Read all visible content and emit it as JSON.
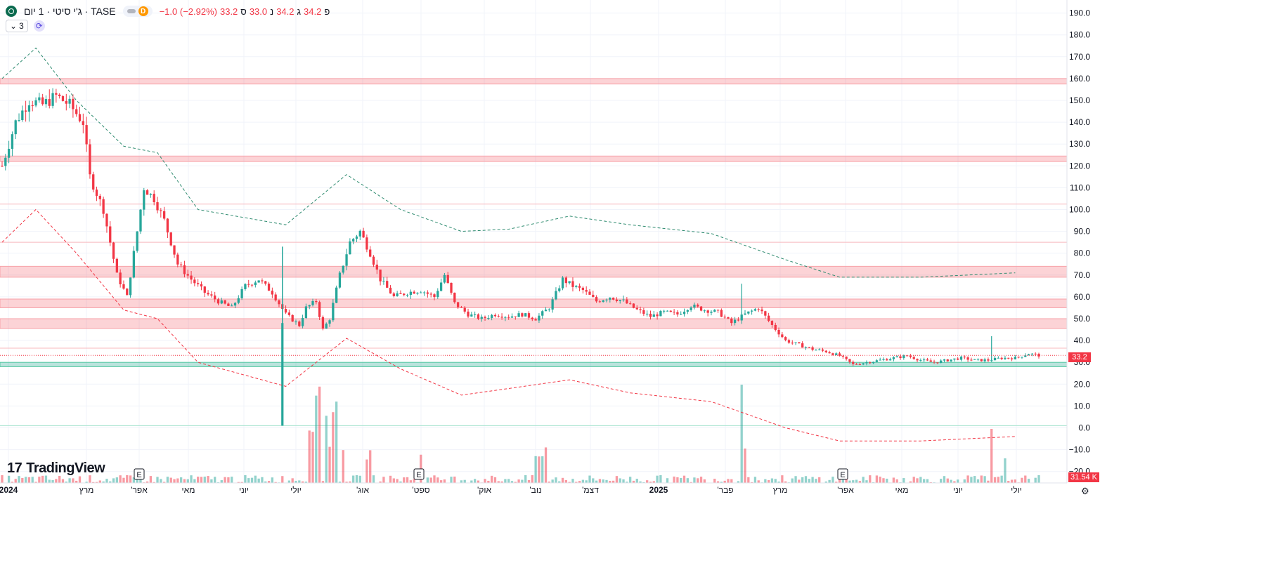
{
  "header": {
    "title": "ג'י סיטי · 1 יום · TASE",
    "data_badge": "D",
    "ohlc": [
      {
        "label": "פ",
        "value": "34.2"
      },
      {
        "label": "ג",
        "value": "34.2"
      },
      {
        "label": "נ",
        "value": "33.0"
      },
      {
        "label": "ס",
        "value": "33.2"
      }
    ],
    "change": "−1.0 (−2.92%)"
  },
  "indicators_toggle": {
    "count": "3"
  },
  "branding": {
    "logo_text": "TradingView"
  },
  "badges": {
    "last_price": "33.2",
    "volume": "31.54 K"
  },
  "colors": {
    "up": "#26a69a",
    "down": "#f23645",
    "zone": "#f23645",
    "support": "#089981",
    "upper_band": "#2e8b6f",
    "lower_band": "#f23645"
  },
  "chart_data": {
    "type": "candlestick",
    "y_axis": {
      "ticks": [
        "190.0",
        "180.0",
        "170.0",
        "160.0",
        "150.0",
        "140.0",
        "130.0",
        "120.0",
        "110.0",
        "100.0",
        "90.0",
        "80.0",
        "70.0",
        "60.0",
        "50.0",
        "40.0",
        "30.0",
        "20.0",
        "10.0",
        "0.0",
        "−10.0",
        "−20.0"
      ],
      "range": [
        -22,
        193
      ]
    },
    "x_axis": {
      "ticks": [
        "2024",
        "מרץ",
        "אפר'",
        "מאי",
        "יוני",
        "יולי",
        "אוג'",
        "ספט'",
        "אוק'",
        "נוב'",
        "דצמ'",
        "2025",
        "פבר'",
        "מרץ",
        "אפר'",
        "מאי",
        "יוני",
        "יולי"
      ]
    },
    "earnings_markers": [
      "E",
      "E",
      "E"
    ],
    "resistance_zones": [
      [
        157.5,
        160
      ],
      [
        122,
        124.5
      ],
      [
        69,
        74
      ],
      [
        55,
        59
      ],
      [
        45.5,
        50
      ],
      [
        28,
        30
      ]
    ],
    "horizontal_lines": [
      102.5,
      85,
      36.5,
      1
    ],
    "price_path": [
      [
        0,
        120
      ],
      [
        4,
        140
      ],
      [
        8,
        150
      ],
      [
        12,
        148
      ],
      [
        16,
        152
      ],
      [
        20,
        148
      ],
      [
        24,
        140
      ],
      [
        26,
        115
      ],
      [
        30,
        100
      ],
      [
        34,
        70
      ],
      [
        37,
        60
      ],
      [
        40,
        90
      ],
      [
        42,
        110
      ],
      [
        45,
        105
      ],
      [
        48,
        95
      ],
      [
        52,
        75
      ],
      [
        56,
        68
      ],
      [
        60,
        62
      ],
      [
        64,
        58
      ],
      [
        68,
        55
      ],
      [
        72,
        65
      ],
      [
        76,
        68
      ],
      [
        80,
        62
      ],
      [
        84,
        52
      ],
      [
        88,
        47
      ],
      [
        90,
        55
      ],
      [
        93,
        58
      ],
      [
        95,
        45
      ],
      [
        97,
        50
      ],
      [
        100,
        70
      ],
      [
        103,
        85
      ],
      [
        106,
        90
      ],
      [
        109,
        80
      ],
      [
        112,
        68
      ],
      [
        116,
        60
      ],
      [
        120,
        62
      ],
      [
        124,
        63
      ],
      [
        128,
        60
      ],
      [
        131,
        70
      ],
      [
        134,
        57
      ],
      [
        138,
        52
      ],
      [
        142,
        50
      ],
      [
        146,
        52
      ],
      [
        150,
        51
      ],
      [
        154,
        52
      ],
      [
        158,
        50
      ],
      [
        162,
        55
      ],
      [
        166,
        68
      ],
      [
        169,
        65
      ],
      [
        172,
        63
      ],
      [
        176,
        58
      ],
      [
        180,
        60
      ],
      [
        184,
        58
      ],
      [
        188,
        54
      ],
      [
        192,
        51
      ],
      [
        196,
        53
      ],
      [
        200,
        52
      ],
      [
        204,
        56
      ],
      [
        208,
        54
      ],
      [
        212,
        53
      ],
      [
        216,
        48
      ],
      [
        220,
        52
      ],
      [
        224,
        55
      ],
      [
        228,
        47
      ],
      [
        232,
        40
      ],
      [
        236,
        38
      ],
      [
        240,
        36
      ],
      [
        244,
        35
      ],
      [
        248,
        33
      ],
      [
        252,
        29
      ],
      [
        256,
        30
      ],
      [
        260,
        31
      ],
      [
        264,
        32
      ],
      [
        268,
        33
      ],
      [
        272,
        31
      ],
      [
        276,
        30
      ],
      [
        280,
        31
      ],
      [
        284,
        32
      ],
      [
        288,
        31
      ],
      [
        292,
        31
      ],
      [
        296,
        32
      ],
      [
        300,
        32
      ],
      [
        304,
        34
      ],
      [
        307,
        33.2
      ]
    ],
    "volume_series_peak": [
      0,
      20
    ],
    "upper_band": [
      [
        0,
        160
      ],
      [
        10,
        174
      ],
      [
        22,
        150
      ],
      [
        36,
        129
      ],
      [
        46,
        126
      ],
      [
        58,
        100
      ],
      [
        84,
        93
      ],
      [
        102,
        116
      ],
      [
        118,
        100
      ],
      [
        136,
        90
      ],
      [
        150,
        91
      ],
      [
        168,
        97
      ],
      [
        186,
        93
      ],
      [
        210,
        89
      ],
      [
        232,
        77
      ],
      [
        248,
        69
      ],
      [
        272,
        69
      ],
      [
        300,
        71
      ]
    ],
    "lower_band": [
      [
        0,
        85
      ],
      [
        10,
        100
      ],
      [
        22,
        80
      ],
      [
        36,
        54
      ],
      [
        46,
        50
      ],
      [
        58,
        30
      ],
      [
        84,
        19
      ],
      [
        102,
        41
      ],
      [
        118,
        27
      ],
      [
        136,
        15
      ],
      [
        150,
        18
      ],
      [
        168,
        22
      ],
      [
        186,
        16
      ],
      [
        210,
        12
      ],
      [
        232,
        0
      ],
      [
        248,
        -6
      ],
      [
        272,
        -6
      ],
      [
        300,
        -4
      ]
    ]
  }
}
